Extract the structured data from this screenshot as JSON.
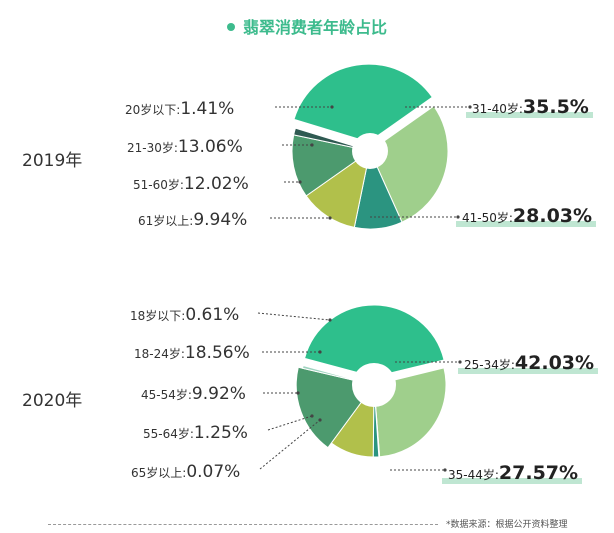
{
  "title": "翡翠消费者年龄占比",
  "source": "*数据来源：根据公开资料整理",
  "colors": {
    "accent": "#3dbb8d",
    "teal": "#2ebf8c",
    "light_green": "#9fcf8c",
    "dark_green": "#4c9a6e",
    "olive": "#b1c04b",
    "dark_teal": "#2b9480",
    "dark": "#2f5a52",
    "highlight": "#bfe6d2"
  },
  "chart_data": [
    {
      "type": "pie",
      "year": "2019年",
      "slices": [
        {
          "name": "31-40岁:",
          "label": "35.5%",
          "value": 35.5,
          "color": "#2ebf8c"
        },
        {
          "name": "41-50岁:",
          "label": "28.03%",
          "value": 28.03,
          "color": "#9fcf8c"
        },
        {
          "name": "61岁以上:",
          "label": "9.94%",
          "value": 9.94,
          "color": "#2b9480"
        },
        {
          "name": "51-60岁:",
          "label": "12.02%",
          "value": 12.02,
          "color": "#b1c04b"
        },
        {
          "name": "21-30岁:",
          "label": "13.06%",
          "value": 13.06,
          "color": "#4c9a6e"
        },
        {
          "name": "20岁以下:",
          "label": "1.41%",
          "value": 1.41,
          "color": "#2f5a52"
        }
      ]
    },
    {
      "type": "pie",
      "year": "2020年",
      "slices": [
        {
          "name": "25-34岁:",
          "label": "42.03%",
          "value": 42.03,
          "color": "#2ebf8c"
        },
        {
          "name": "35-44岁:",
          "label": "27.57%",
          "value": 27.57,
          "color": "#9fcf8c"
        },
        {
          "name": "65岁以上:",
          "label": "0.07%",
          "value": 0.07,
          "color": "#2f5a52"
        },
        {
          "name": "55-64岁:",
          "label": "1.25%",
          "value": 1.25,
          "color": "#2b9480"
        },
        {
          "name": "45-54岁:",
          "label": "9.92%",
          "value": 9.92,
          "color": "#b1c04b"
        },
        {
          "name": "18-24岁:",
          "label": "18.56%",
          "value": 18.56,
          "color": "#4c9a6e"
        },
        {
          "name": "18岁以下:",
          "label": "0.61%",
          "value": 0.61,
          "color": "#9fd4c0"
        }
      ]
    }
  ]
}
